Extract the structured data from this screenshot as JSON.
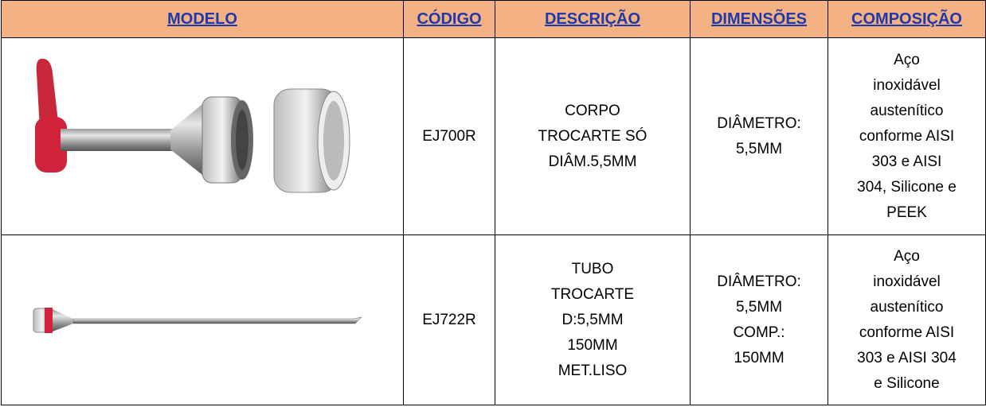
{
  "table": {
    "headers": [
      "MODELO",
      "CÓDIGO",
      "DESCRIÇÃO",
      "DIMENSÕES",
      "COMPOSIÇÃO"
    ],
    "rows": [
      {
        "code": "EJ700R",
        "description": [
          "CORPO",
          "TROCARTE SÓ",
          "DIÂM.5,5MM"
        ],
        "dimensions": [
          "DIÂMETRO:",
          "5,5MM"
        ],
        "composition": [
          "Aço",
          "inoxidável",
          "austenítico",
          "conforme AISI",
          "303 e AISI",
          "304, Silicone e",
          "PEEK"
        ]
      },
      {
        "code": "EJ722R",
        "description": [
          "TUBO",
          "TROCARTE",
          "D:5,5MM",
          "150MM",
          "MET.LISO"
        ],
        "dimensions": [
          "DIÂMETRO:",
          "5,5MM",
          "COMP.:",
          "150MM"
        ],
        "composition": [
          "Aço",
          "inoxidável",
          "austenítico",
          "conforme AISI",
          "303 e AISI 304",
          "e Silicone"
        ]
      }
    ]
  }
}
